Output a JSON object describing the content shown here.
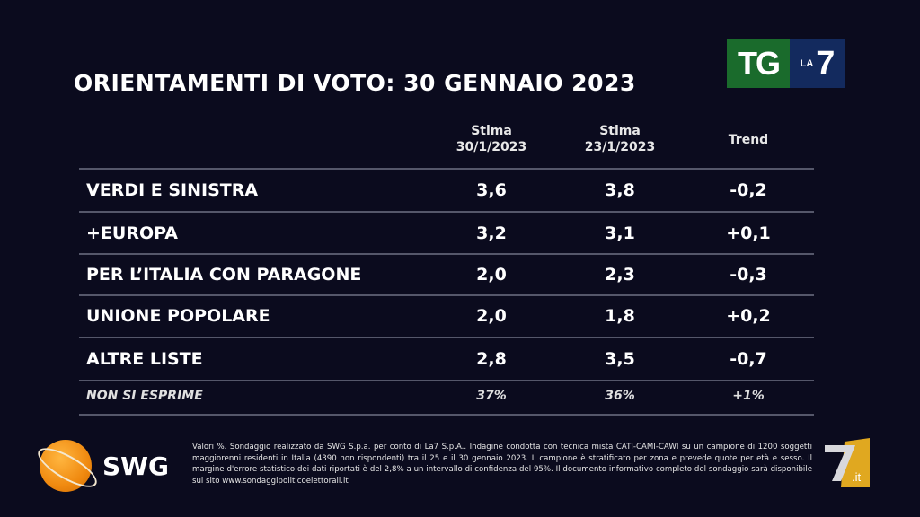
{
  "title": "ORIENTAMENTI DI VOTO: 30 GENNAIO 2023",
  "logo_tg": {
    "left": "TG",
    "la": "LA",
    "seven": "7"
  },
  "columns": [
    "Stima\n30/1/2023",
    "Stima\n23/1/2023",
    "Trend"
  ],
  "col_headers": [
    {
      "l1": "Stima",
      "l2": "30/1/2023"
    },
    {
      "l1": "Stima",
      "l2": "23/1/2023"
    },
    {
      "l1": "Trend",
      "l2": ""
    }
  ],
  "rows": [
    {
      "label": "VERDI E SINISTRA",
      "v1": "3,6",
      "v2": "3,8",
      "trend": "-0,2"
    },
    {
      "label": "+EUROPA",
      "v1": "3,2",
      "v2": "3,1",
      "trend": "+0,1"
    },
    {
      "label": "PER L’ITALIA CON PARAGONE",
      "v1": "2,0",
      "v2": "2,3",
      "trend": "-0,3"
    },
    {
      "label": "UNIONE POPOLARE",
      "v1": "2,0",
      "v2": "1,8",
      "trend": "+0,2"
    },
    {
      "label": "ALTRE LISTE",
      "v1": "2,8",
      "v2": "3,5",
      "trend": "-0,7"
    },
    {
      "label": "NON SI ESPRIME",
      "v1": "37%",
      "v2": "36%",
      "trend": "+1%"
    }
  ],
  "swg_logo": "SWG",
  "note": "Valori %. Sondaggio realizzato da SWG S.p.a. per conto di La7 S.p.A.. Indagine condotta con tecnica mista CATI-CAMI-CAWI su un campione di 1200 soggetti maggiorenni residenti in Italia (4390 non rispondenti) tra il 25 e il 30 gennaio 2023. Il campione è stratificato per zona e prevede quote per età e sesso. Il margine d'errore statistico dei dati riportati è del 2,8% a un intervallo di confidenza del 95%. Il documento informativo completo del sondaggio sarà disponibile sul sito www.sondaggipoliticoelettorali.it",
  "watermark": "LA7.it",
  "colors": {
    "background": "#0b0b1e",
    "tg_green": "#1a6b2c",
    "tg_blue": "#132a5e",
    "swg_orange": "#f08a10",
    "la7_gold": "#e0a820"
  }
}
